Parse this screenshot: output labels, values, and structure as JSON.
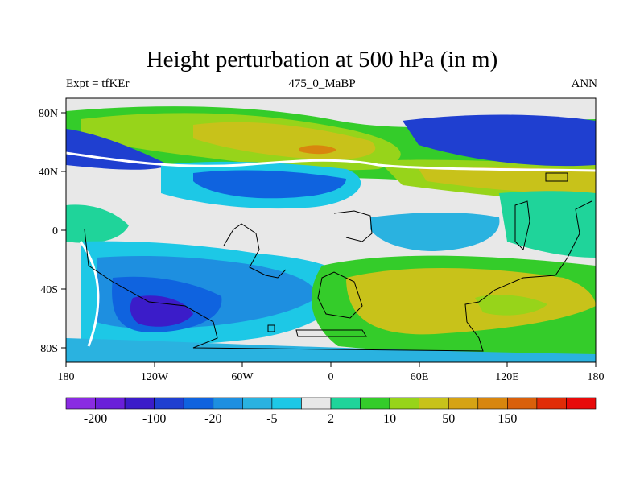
{
  "header": {
    "title": "Height perturbation at 500 hPa (in m)",
    "left_label": "Expt = tfKEr",
    "center_label": "475_0_MaBP",
    "right_label": "ANN"
  },
  "axes": {
    "x_ticks": [
      "180",
      "120W",
      "60W",
      "0",
      "60E",
      "120E",
      "180"
    ],
    "y_ticks": [
      "80N",
      "40N",
      "0",
      "40S",
      "80S"
    ]
  },
  "colorbar": {
    "colors": [
      "#8a2be2",
      "#6a1fd9",
      "#3b1cc9",
      "#1f3fd0",
      "#0f63df",
      "#1e8fe0",
      "#2ab2e0",
      "#1dc8e6",
      "#e8e8e8",
      "#1fd49a",
      "#34cc2a",
      "#97d41a",
      "#c8c21a",
      "#d6a314",
      "#d8860e",
      "#d9600b",
      "#e02c08",
      "#e80a0a"
    ],
    "labels": [
      "-200",
      "-100",
      "-20",
      "-5",
      "2",
      "10",
      "50",
      "150"
    ]
  },
  "map_colors": {
    "background": "#e8e8e8",
    "land_outline": "#000000"
  }
}
